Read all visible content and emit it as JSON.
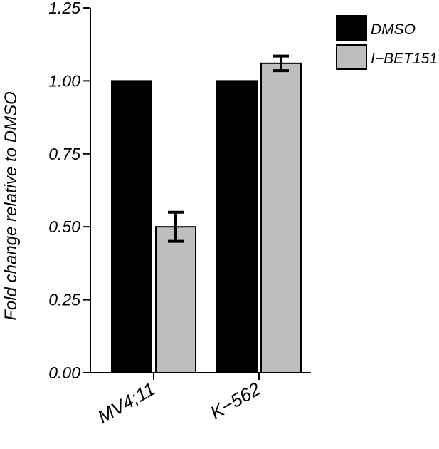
{
  "chart_data": {
    "type": "bar",
    "title": "",
    "xlabel": "",
    "ylabel": "Fold change relative to DMSO",
    "categories": [
      "MV4;11",
      "K−562"
    ],
    "series": [
      {
        "name": "DMSO",
        "color": "#000000",
        "values": [
          1.0,
          1.0
        ],
        "errors": [
          null,
          null
        ]
      },
      {
        "name": "I−BET151",
        "color": "#bebebe",
        "values": [
          0.5,
          1.06
        ],
        "errors": [
          0.05,
          0.025
        ]
      }
    ],
    "ylim": [
      0,
      1.25
    ],
    "yticks": [
      0.0,
      0.25,
      0.5,
      0.75,
      1.0,
      1.25
    ],
    "ytick_labels": [
      "0.00",
      "0.25",
      "0.50",
      "0.75",
      "1.00",
      "1.25"
    ],
    "grid": false,
    "legend_position": "top-right"
  }
}
